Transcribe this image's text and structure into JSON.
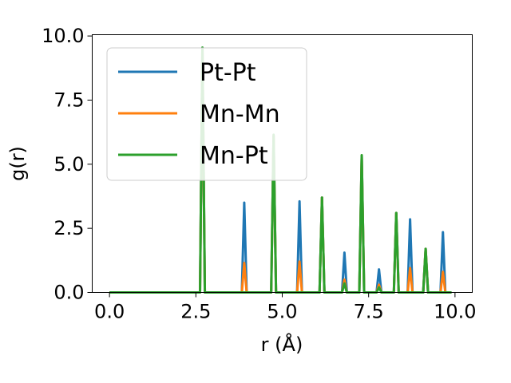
{
  "chart_data": {
    "type": "line",
    "xlabel": "r (Å)",
    "ylabel": "g(r)",
    "xlim": [
      -0.5,
      10.5
    ],
    "ylim": [
      0,
      10.05
    ],
    "xticks": [
      "0.0",
      "2.5",
      "5.0",
      "7.5",
      "10.0"
    ],
    "yticks": [
      "0.0",
      "2.5",
      "5.0",
      "7.5",
      "10.0"
    ],
    "grid": false,
    "legend_position": "top-left",
    "peak_half_width": 0.07,
    "series": [
      {
        "name": "Pt-Pt",
        "color": "#1f77b4",
        "peaks": [
          [
            2.69,
            9.5
          ],
          [
            3.9,
            3.5
          ],
          [
            4.75,
            6.1
          ],
          [
            5.5,
            3.55
          ],
          [
            6.15,
            3.7
          ],
          [
            6.8,
            1.55
          ],
          [
            7.3,
            5.3
          ],
          [
            7.8,
            0.9
          ],
          [
            8.3,
            3.1
          ],
          [
            8.7,
            2.85
          ],
          [
            9.15,
            1.7
          ],
          [
            9.65,
            2.35
          ]
        ]
      },
      {
        "name": "Mn-Mn",
        "color": "#ff7f0e",
        "peaks": [
          [
            2.69,
            9.5
          ],
          [
            3.9,
            1.15
          ],
          [
            4.75,
            6.1
          ],
          [
            5.5,
            1.2
          ],
          [
            6.15,
            3.7
          ],
          [
            6.8,
            0.5
          ],
          [
            7.3,
            5.3
          ],
          [
            7.8,
            0.3
          ],
          [
            8.3,
            3.1
          ],
          [
            8.7,
            0.95
          ],
          [
            9.15,
            1.7
          ],
          [
            9.65,
            0.8
          ]
        ]
      },
      {
        "name": "Mn-Pt",
        "color": "#2ca02c",
        "peaks": [
          [
            2.69,
            9.55
          ],
          [
            3.9,
            0.0
          ],
          [
            4.75,
            6.15
          ],
          [
            5.5,
            0.0
          ],
          [
            6.15,
            3.7
          ],
          [
            6.8,
            0.35
          ],
          [
            7.3,
            5.35
          ],
          [
            7.8,
            0.2
          ],
          [
            8.3,
            3.1
          ],
          [
            8.7,
            0.0
          ],
          [
            9.15,
            1.7
          ],
          [
            9.65,
            0.0
          ]
        ]
      }
    ],
    "x_range_data": [
      0.0,
      9.9
    ]
  }
}
